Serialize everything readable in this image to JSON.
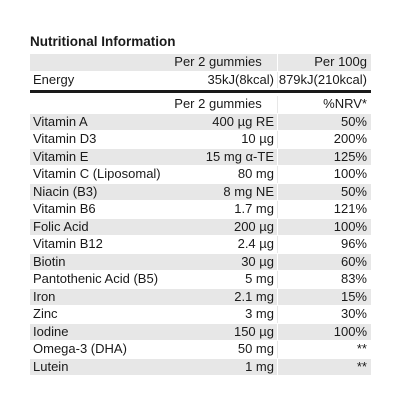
{
  "title": "Nutritional Information",
  "header": {
    "col_serving": "Per 2 gummies",
    "col_100g": "Per 100g"
  },
  "energy": {
    "label": "Energy",
    "per_serving": "35kJ(8kcal)",
    "per_100g": "879kJ(210kcal)"
  },
  "vitamins_header": {
    "col_serving": "Per 2 gummies",
    "col_nrv": "%NRV*"
  },
  "nutrients": [
    {
      "name": "Vitamin A",
      "amount": "400 µg RE",
      "nrv": "50%"
    },
    {
      "name": "Vitamin D3",
      "amount": "10 µg",
      "nrv": "200%"
    },
    {
      "name": "Vitamin E",
      "amount": "15 mg α-TE",
      "nrv": "125%"
    },
    {
      "name": "Vitamin C (Liposomal)",
      "amount": "80 mg",
      "nrv": "100%"
    },
    {
      "name": "Niacin (B3)",
      "amount": "8 mg NE",
      "nrv": "50%"
    },
    {
      "name": "Vitamin B6",
      "amount": "1.7 mg",
      "nrv": "121%"
    },
    {
      "name": "Folic Acid",
      "amount": "200 µg",
      "nrv": "100%"
    },
    {
      "name": "Vitamin B12",
      "amount": "2.4 µg",
      "nrv": "96%"
    },
    {
      "name": "Biotin",
      "amount": "30 µg",
      "nrv": "60%"
    },
    {
      "name": "Pantothenic Acid (B5)",
      "amount": "5 mg",
      "nrv": "83%"
    },
    {
      "name": "Iron",
      "amount": "2.1 mg",
      "nrv": "15%"
    },
    {
      "name": "Zinc",
      "amount": "3 mg",
      "nrv": "30%"
    },
    {
      "name": "Iodine",
      "amount": "150 µg",
      "nrv": "100%"
    },
    {
      "name": "Omega-3 (DHA)",
      "amount": "50 mg",
      "nrv": "**"
    },
    {
      "name": "Lutein",
      "amount": "1 mg",
      "nrv": "**"
    }
  ]
}
